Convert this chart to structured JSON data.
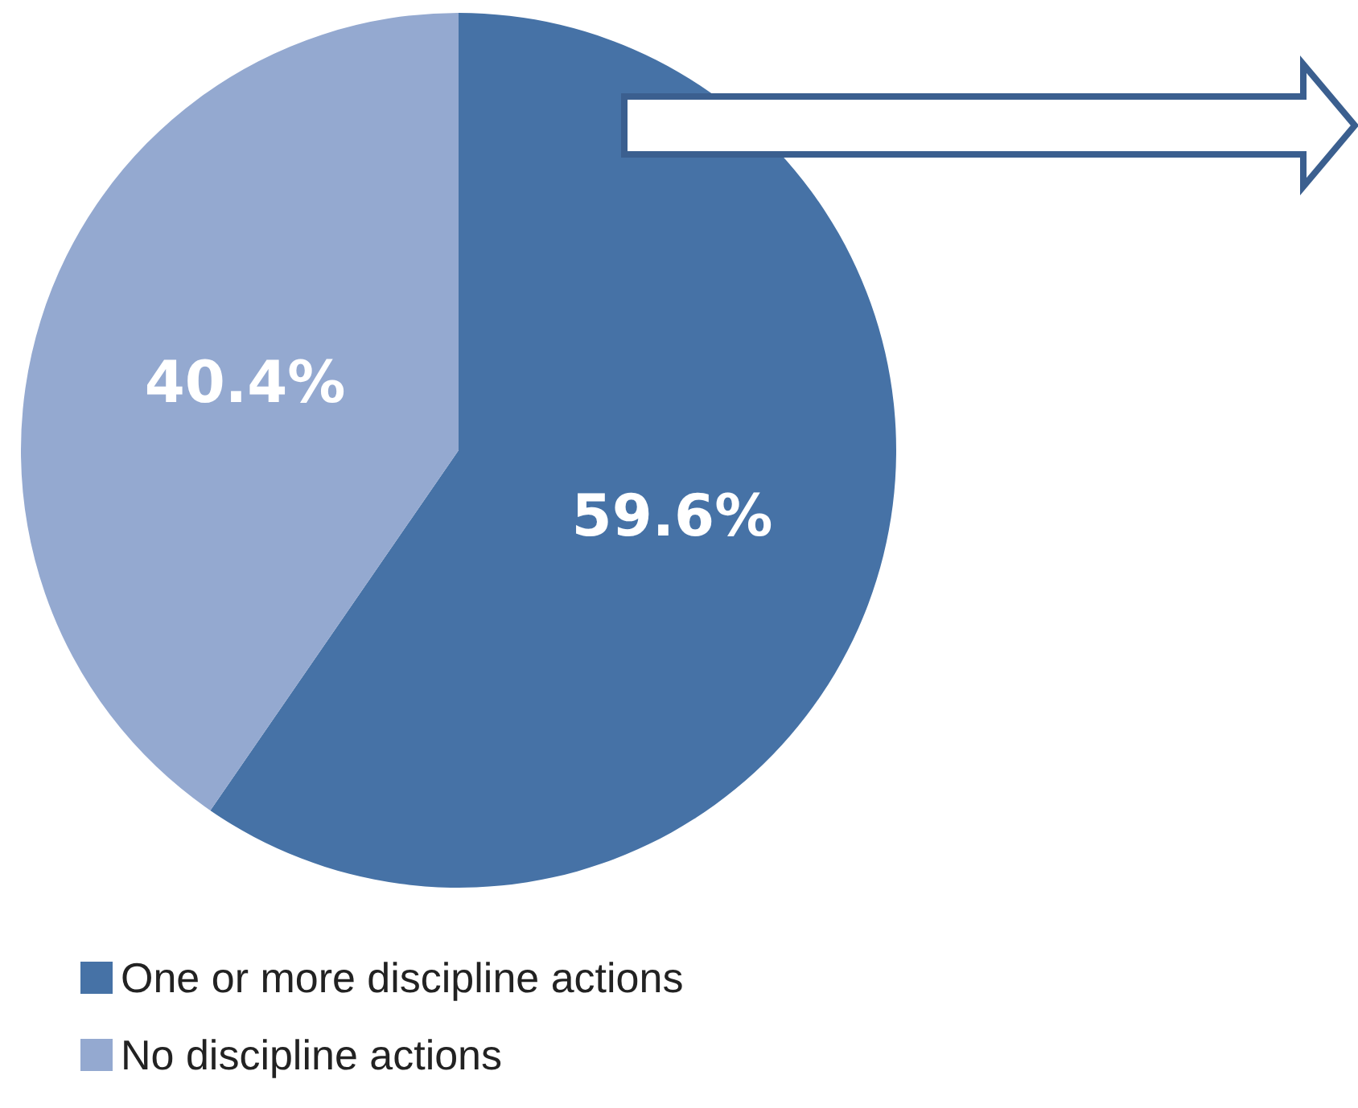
{
  "chart_data": {
    "type": "pie",
    "categories": [
      "One or more discipline actions",
      "No discipline actions"
    ],
    "values": [
      59.6,
      40.4
    ],
    "colors": [
      "#4672a6",
      "#94a9d0"
    ],
    "value_labels": [
      "59.6%",
      "40.4%"
    ],
    "legend": "bottom left"
  }
}
